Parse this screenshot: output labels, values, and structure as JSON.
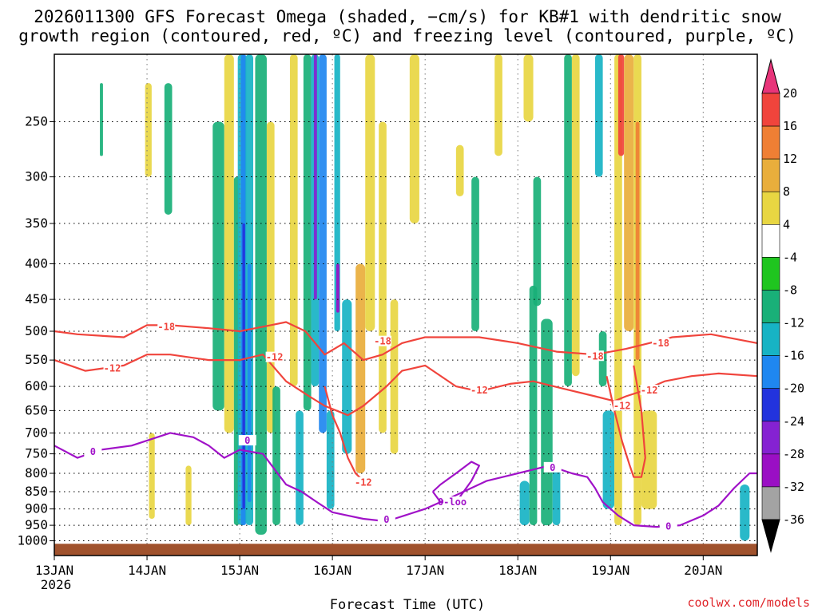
{
  "chart_data": {
    "type": "heatmap",
    "title_lines": [
      "2026011300 GFS Forecast Omega (shaded, −cm/s) for KB#1 with dendritic snow",
      "growth region (contoured, red, ºC) and freezing level (contoured, purple, ºC)"
    ],
    "xlabel": "Forecast Time (UTC)",
    "credit": "coolwx.com/models",
    "x_hour_range": [
      0,
      182
    ],
    "x_ticks": [
      {
        "hour": 0,
        "label": "13JAN",
        "sublabel": "2026"
      },
      {
        "hour": 24,
        "label": "14JAN"
      },
      {
        "hour": 48,
        "label": "15JAN"
      },
      {
        "hour": 72,
        "label": "16JAN"
      },
      {
        "hour": 96,
        "label": "17JAN"
      },
      {
        "hour": 120,
        "label": "18JAN"
      },
      {
        "hour": 144,
        "label": "19JAN"
      },
      {
        "hour": 168,
        "label": "20JAN"
      }
    ],
    "y_axis": {
      "scale": "log-pressure",
      "top_hpa": 200,
      "bottom_hpa": 1050,
      "tick_labels": [
        "250",
        "300",
        "350",
        "400",
        "450",
        "500",
        "550",
        "600",
        "650",
        "700",
        "750",
        "800",
        "850",
        "900",
        "950",
        "1000"
      ]
    },
    "colorbar": {
      "levels": [
        "20",
        "16",
        "12",
        "8",
        "4",
        "-4",
        "-8",
        "-12",
        "-16",
        "-20",
        "-24",
        "-28",
        "-32",
        "-36"
      ],
      "colors": [
        "#e8357a",
        "#f0443c",
        "#ef7f34",
        "#e9ae3c",
        "#e8d642",
        "#ffffff",
        "#1fc51f",
        "#19b078",
        "#17b3c4",
        "#1f87f0",
        "#2233dd",
        "#8522d2",
        "#9a0fc4",
        "#a3a3a3",
        "#000000"
      ]
    },
    "omega_patches": [
      {
        "h0": 11.8,
        "h1": 12.6,
        "p0": 220,
        "p1": 280,
        "v": -8
      },
      {
        "h0": 23.5,
        "h1": 25.2,
        "p0": 220,
        "p1": 300,
        "v": 6
      },
      {
        "h0": 24.5,
        "h1": 26,
        "p0": 700,
        "p1": 930,
        "v": 6
      },
      {
        "h0": 28.5,
        "h1": 30.5,
        "p0": 220,
        "p1": 340,
        "v": -8
      },
      {
        "h0": 34,
        "h1": 35.5,
        "p0": 780,
        "p1": 950,
        "v": 6
      },
      {
        "h0": 41,
        "h1": 44,
        "p0": 250,
        "p1": 650,
        "v": -8
      },
      {
        "h0": 44,
        "h1": 46.5,
        "p0": 200,
        "p1": 700,
        "v": 6
      },
      {
        "h0": 46.5,
        "h1": 48,
        "p0": 300,
        "p1": 950,
        "v": -8
      },
      {
        "h0": 47.5,
        "h1": 49.5,
        "p0": 200,
        "p1": 950,
        "v": -12
      },
      {
        "h0": 48.3,
        "h1": 49.7,
        "p0": 200,
        "p1": 950,
        "v": -16
      },
      {
        "h0": 48.7,
        "h1": 49.4,
        "p0": 350,
        "p1": 900,
        "v": -20
      },
      {
        "h0": 49.5,
        "h1": 51.5,
        "p0": 200,
        "p1": 950,
        "v": -12
      },
      {
        "h0": 50,
        "h1": 51,
        "p0": 400,
        "p1": 880,
        "v": -16
      },
      {
        "h0": 52,
        "h1": 55,
        "p0": 200,
        "p1": 980,
        "v": -8
      },
      {
        "h0": 55,
        "h1": 57,
        "p0": 250,
        "p1": 700,
        "v": 6
      },
      {
        "h0": 56.5,
        "h1": 58.5,
        "p0": 600,
        "p1": 950,
        "v": -8
      },
      {
        "h0": 61,
        "h1": 63,
        "p0": 200,
        "p1": 600,
        "v": 6
      },
      {
        "h0": 62.5,
        "h1": 64.5,
        "p0": 650,
        "p1": 950,
        "v": -12
      },
      {
        "h0": 64.5,
        "h1": 66.5,
        "p0": 200,
        "p1": 650,
        "v": -8
      },
      {
        "h0": 66.5,
        "h1": 68.5,
        "p0": 200,
        "p1": 600,
        "v": -12
      },
      {
        "h0": 67.2,
        "h1": 68,
        "p0": 200,
        "p1": 450,
        "v": -24
      },
      {
        "h0": 68.5,
        "h1": 70.5,
        "p0": 200,
        "p1": 700,
        "v": -16
      },
      {
        "h0": 70.5,
        "h1": 72.5,
        "p0": 650,
        "p1": 900,
        "v": -12
      },
      {
        "h0": 72.5,
        "h1": 74,
        "p0": 200,
        "p1": 500,
        "v": -12
      },
      {
        "h0": 73,
        "h1": 73.8,
        "p0": 400,
        "p1": 470,
        "v": -28
      },
      {
        "h0": 74.5,
        "h1": 77,
        "p0": 450,
        "p1": 750,
        "v": -12
      },
      {
        "h0": 78,
        "h1": 80.5,
        "p0": 400,
        "p1": 800,
        "v": 10
      },
      {
        "h0": 80.5,
        "h1": 83,
        "p0": 200,
        "p1": 500,
        "v": 6
      },
      {
        "h0": 84,
        "h1": 86,
        "p0": 250,
        "p1": 700,
        "v": 6
      },
      {
        "h0": 87,
        "h1": 89,
        "p0": 450,
        "p1": 750,
        "v": 6
      },
      {
        "h0": 92,
        "h1": 94.5,
        "p0": 200,
        "p1": 350,
        "v": 6
      },
      {
        "h0": 104,
        "h1": 106,
        "p0": 270,
        "p1": 320,
        "v": 6
      },
      {
        "h0": 108,
        "h1": 110,
        "p0": 300,
        "p1": 500,
        "v": -8
      },
      {
        "h0": 114,
        "h1": 116,
        "p0": 200,
        "p1": 280,
        "v": 6
      },
      {
        "h0": 121.5,
        "h1": 124,
        "p0": 200,
        "p1": 250,
        "v": 6
      },
      {
        "h0": 124,
        "h1": 126,
        "p0": 300,
        "p1": 460,
        "v": -8
      },
      {
        "h0": 120.5,
        "h1": 123,
        "p0": 820,
        "p1": 950,
        "v": -12
      },
      {
        "h0": 123,
        "h1": 125,
        "p0": 430,
        "p1": 950,
        "v": -8
      },
      {
        "h0": 126,
        "h1": 129,
        "p0": 480,
        "p1": 950,
        "v": -8
      },
      {
        "h0": 129,
        "h1": 131,
        "p0": 780,
        "p1": 950,
        "v": -12
      },
      {
        "h0": 132,
        "h1": 134,
        "p0": 200,
        "p1": 600,
        "v": -8
      },
      {
        "h0": 134,
        "h1": 136,
        "p0": 200,
        "p1": 580,
        "v": 6
      },
      {
        "h0": 140,
        "h1": 142,
        "p0": 200,
        "p1": 300,
        "v": -12
      },
      {
        "h0": 141,
        "h1": 143,
        "p0": 500,
        "p1": 600,
        "v": -8
      },
      {
        "h0": 142,
        "h1": 145,
        "p0": 650,
        "p1": 900,
        "v": -12
      },
      {
        "h0": 145,
        "h1": 147,
        "p0": 200,
        "p1": 950,
        "v": 6
      },
      {
        "h0": 146,
        "h1": 147.5,
        "p0": 200,
        "p1": 280,
        "v": 18
      },
      {
        "h0": 147.5,
        "h1": 150,
        "p0": 200,
        "p1": 500,
        "v": 10
      },
      {
        "h0": 150,
        "h1": 152,
        "p0": 200,
        "p1": 950,
        "v": 6
      },
      {
        "h0": 150.5,
        "h1": 151.5,
        "p0": 250,
        "p1": 550,
        "v": 14
      },
      {
        "h0": 152,
        "h1": 156,
        "p0": 650,
        "p1": 900,
        "v": 6
      },
      {
        "h0": 177.5,
        "h1": 180,
        "p0": 830,
        "p1": 1000,
        "v": -12
      }
    ],
    "contours": [
      {
        "name": "-18",
        "color": "#f0443c",
        "x": [
          0,
          6,
          18,
          24,
          30,
          40,
          48,
          56,
          60,
          65,
          70,
          75,
          80,
          85,
          90,
          96,
          110,
          120,
          130,
          140,
          148,
          154,
          160,
          170,
          182
        ],
        "y": [
          500,
          505,
          510,
          490,
          490,
          495,
          500,
          490,
          485,
          500,
          540,
          520,
          550,
          540,
          520,
          510,
          510,
          520,
          535,
          540,
          530,
          520,
          510,
          505,
          520
        ],
        "labels": [
          {
            "x": 29,
            "y": 493
          },
          {
            "x": 85,
            "y": 517
          },
          {
            "x": 140,
            "y": 543
          },
          {
            "x": 157,
            "y": 520
          }
        ]
      },
      {
        "name": "-12",
        "color": "#f0443c",
        "x": [
          0,
          8,
          18,
          24,
          30,
          40,
          48,
          54,
          60,
          66,
          70,
          76,
          80,
          86,
          90,
          96,
          104,
          110,
          118,
          124,
          132,
          140,
          145,
          148,
          152,
          158,
          165,
          172,
          182
        ],
        "y": [
          550,
          570,
          560,
          540,
          540,
          550,
          550,
          540,
          590,
          620,
          640,
          660,
          640,
          600,
          570,
          560,
          600,
          610,
          595,
          590,
          605,
          620,
          630,
          620,
          610,
          590,
          580,
          575,
          580
        ],
        "labels": [
          {
            "x": 15,
            "y": 565
          },
          {
            "x": 57,
            "y": 545
          },
          {
            "x": 110,
            "y": 608
          },
          {
            "x": 154,
            "y": 608
          }
        ]
      },
      {
        "name": "-12b",
        "color": "#f0443c",
        "x": [
          70,
          72,
          74,
          76,
          78,
          80
        ],
        "y": [
          600,
          660,
          700,
          760,
          800,
          820
        ],
        "labels": [
          {
            "x": 80,
            "y": 825
          }
        ]
      },
      {
        "name": "-12c",
        "color": "#f0443c",
        "x": [
          143,
          145,
          147,
          149,
          150,
          152,
          153,
          152,
          150
        ],
        "y": [
          580,
          650,
          720,
          780,
          810,
          810,
          760,
          650,
          560
        ],
        "labels": [
          {
            "x": 147,
            "y": 640
          }
        ]
      },
      {
        "name": "0",
        "color": "#a012c8",
        "x": [
          0,
          6,
          12,
          20,
          30,
          36,
          40,
          44,
          48,
          54,
          60,
          64,
          68,
          72,
          76,
          80,
          84,
          88,
          96,
          104,
          112,
          120,
          124,
          128,
          134,
          138,
          140,
          142,
          146,
          150,
          156,
          162,
          168,
          172,
          176,
          180,
          182
        ],
        "y": [
          730,
          760,
          740,
          730,
          700,
          710,
          730,
          760,
          740,
          750,
          830,
          850,
          880,
          910,
          920,
          930,
          935,
          930,
          900,
          860,
          820,
          800,
          790,
          780,
          800,
          810,
          840,
          880,
          920,
          950,
          955,
          950,
          920,
          890,
          840,
          800,
          800
        ],
        "labels": [
          {
            "x": 10,
            "y": 745
          },
          {
            "x": 50,
            "y": 718
          },
          {
            "x": 86,
            "y": 932
          },
          {
            "x": 129,
            "y": 785
          },
          {
            "x": 159,
            "y": 953
          }
        ]
      },
      {
        "name": "0-loop",
        "color": "#a012c8",
        "x": [
          98,
          100,
          104,
          108,
          110,
          108,
          104,
          100,
          98
        ],
        "y": [
          850,
          880,
          880,
          820,
          780,
          770,
          800,
          830,
          850
        ],
        "labels": [
          {
            "x": 103,
            "y": 880
          }
        ]
      }
    ],
    "terrain_color": "#a0522d"
  }
}
